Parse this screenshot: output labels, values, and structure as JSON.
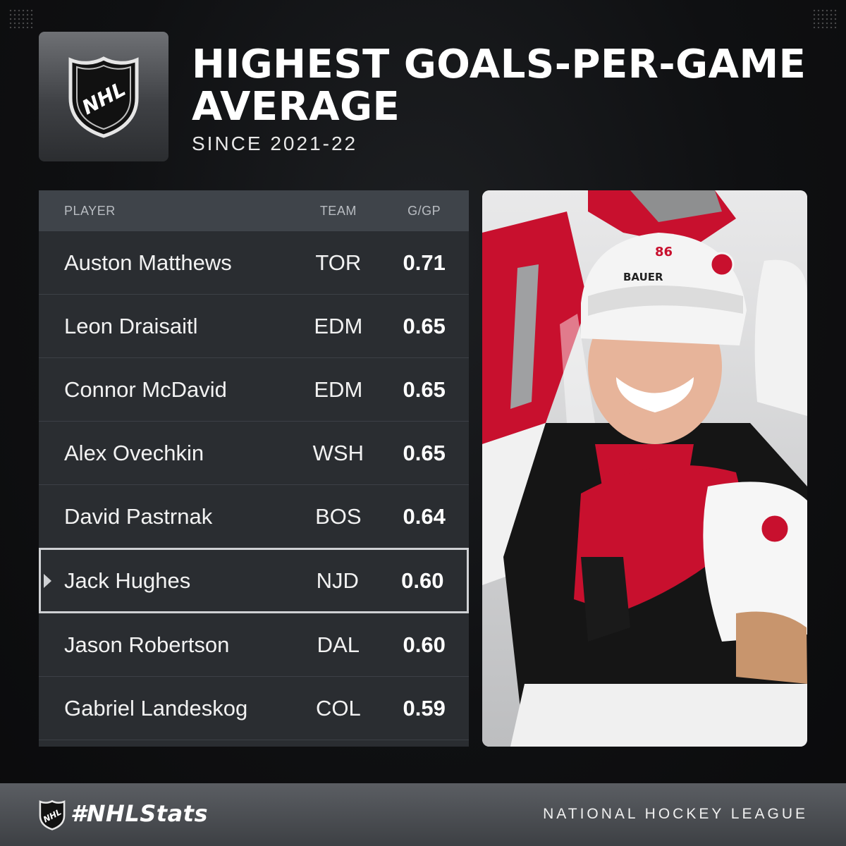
{
  "header": {
    "title": "HIGHEST GOALS-PER-GAME AVERAGE",
    "subtitle": "SINCE 2021-22",
    "logo_text": "NHL"
  },
  "table": {
    "columns": [
      "PLAYER",
      "TEAM",
      "G/GP"
    ],
    "rows": [
      {
        "player": "Auston Matthews",
        "team": "TOR",
        "ggp": "0.71"
      },
      {
        "player": "Leon Draisaitl",
        "team": "EDM",
        "ggp": "0.65"
      },
      {
        "player": "Connor McDavid",
        "team": "EDM",
        "ggp": "0.65"
      },
      {
        "player": "Alex Ovechkin",
        "team": "WSH",
        "ggp": "0.65"
      },
      {
        "player": "David Pastrnak",
        "team": "BOS",
        "ggp": "0.64"
      },
      {
        "player": "Jack Hughes",
        "team": "NJD",
        "ggp": "0.60",
        "highlighted": true
      },
      {
        "player": "Jason Robertson",
        "team": "DAL",
        "ggp": "0.60"
      },
      {
        "player": "Gabriel Landeskog",
        "team": "COL",
        "ggp": "0.59"
      }
    ]
  },
  "photo": {
    "helmet_brand": "BAUER",
    "jersey_number": "86"
  },
  "footer": {
    "hashtag": "#NHLStats",
    "league": "NATIONAL HOCKEY LEAGUE"
  },
  "colors": {
    "background": "#0f1012",
    "table_row": "#2a2d31",
    "table_header": "#3f444a",
    "highlight_border": "#cfd1d4",
    "jersey_red": "#c8102e"
  }
}
